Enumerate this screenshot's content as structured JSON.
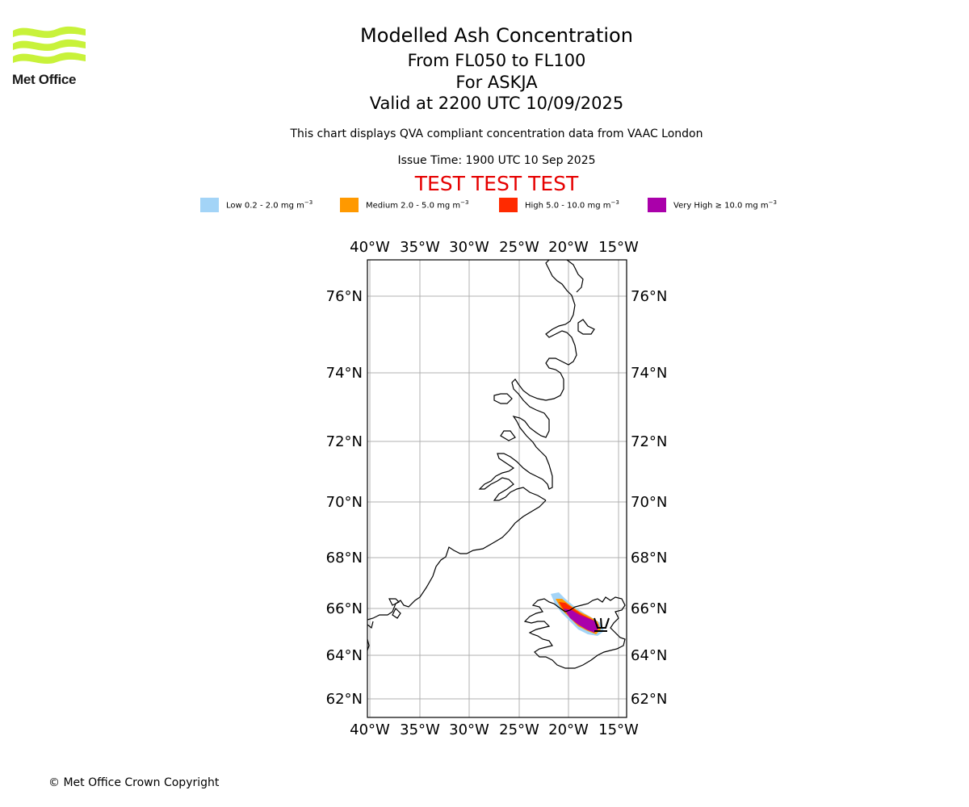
{
  "logo": {
    "text": "Met Office",
    "color": "#c8f23a"
  },
  "title": {
    "line1": "Modelled Ash Concentration",
    "line2": "From FL050 to FL100",
    "line3": "For ASKJA",
    "line4": "Valid at 2200 UTC 10/09/2025"
  },
  "subtitle": "This chart displays QVA compliant concentration data from VAAC London",
  "issue_time": "Issue Time: 1900 UTC 10 Sep 2025",
  "test_banner": "TEST TEST TEST",
  "legend": [
    {
      "label": "Low 0.2 - 2.0 mg m",
      "color": "#a3d4f7"
    },
    {
      "label": "Medium 2.0 - 5.0 mg m",
      "color": "#ff9900"
    },
    {
      "label": "High 5.0 - 10.0 mg m",
      "color": "#ff2a00"
    },
    {
      "label": "Very High ≥ 10.0 mg m",
      "color": "#aa00aa"
    }
  ],
  "legend_unit_exp": "−3",
  "map": {
    "lon_labels": [
      "40°W",
      "35°W",
      "30°W",
      "25°W",
      "20°W",
      "15°W"
    ],
    "lat_labels": [
      "76°N",
      "74°N",
      "72°N",
      "70°N",
      "68°N",
      "66°N",
      "64°N",
      "62°N"
    ],
    "volcano": "Askja",
    "gridline_color": "#b0b0b0"
  },
  "copyright": "© Met Office Crown Copyright"
}
